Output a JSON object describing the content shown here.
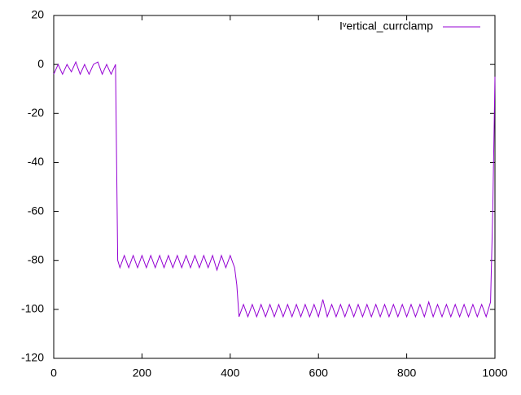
{
  "chart_data": {
    "type": "line",
    "x": [
      0,
      10,
      20,
      30,
      40,
      50,
      60,
      70,
      80,
      90,
      100,
      110,
      120,
      130,
      140,
      145,
      150,
      160,
      170,
      180,
      190,
      200,
      210,
      220,
      230,
      240,
      250,
      260,
      270,
      280,
      290,
      300,
      310,
      320,
      330,
      340,
      350,
      360,
      370,
      380,
      390,
      400,
      410,
      415,
      420,
      430,
      440,
      450,
      460,
      470,
      480,
      490,
      500,
      510,
      520,
      530,
      540,
      550,
      560,
      570,
      580,
      590,
      600,
      610,
      620,
      630,
      640,
      650,
      660,
      670,
      680,
      690,
      700,
      710,
      720,
      730,
      740,
      750,
      760,
      770,
      780,
      790,
      800,
      810,
      820,
      830,
      840,
      850,
      860,
      870,
      880,
      890,
      900,
      910,
      920,
      930,
      940,
      950,
      960,
      970,
      980,
      990,
      995,
      1000
    ],
    "series": [
      {
        "name": "Iᵛertical_currclamp",
        "color": "#9400d3",
        "values": [
          -4,
          0,
          -4,
          0,
          -3,
          1,
          -4,
          0,
          -4,
          0,
          1,
          -4,
          0,
          -4,
          0,
          -80,
          -83,
          -78,
          -83,
          -78,
          -83,
          -78,
          -83,
          -78,
          -83,
          -78,
          -83,
          -78,
          -83,
          -78,
          -83,
          -78,
          -83,
          -78,
          -83,
          -78,
          -83,
          -78,
          -84,
          -78,
          -83,
          -78,
          -83,
          -90,
          -103,
          -98,
          -103,
          -98,
          -103,
          -98,
          -103,
          -98,
          -103,
          -98,
          -103,
          -98,
          -103,
          -98,
          -103,
          -98,
          -103,
          -98,
          -103,
          -96,
          -103,
          -98,
          -103,
          -98,
          -103,
          -98,
          -103,
          -98,
          -103,
          -98,
          -103,
          -98,
          -103,
          -98,
          -103,
          -98,
          -103,
          -98,
          -103,
          -98,
          -103,
          -98,
          -103,
          -97,
          -103,
          -98,
          -103,
          -98,
          -103,
          -98,
          -103,
          -98,
          -103,
          -98,
          -103,
          -98,
          -103,
          -97,
          -60,
          -5
        ]
      }
    ],
    "xlim": [
      0,
      1000
    ],
    "ylim": [
      -120,
      20
    ],
    "xticks": [
      0,
      200,
      400,
      600,
      800,
      1000
    ],
    "yticks": [
      -120,
      -100,
      -80,
      -60,
      -40,
      -20,
      0,
      20
    ],
    "legend": "top-right"
  }
}
